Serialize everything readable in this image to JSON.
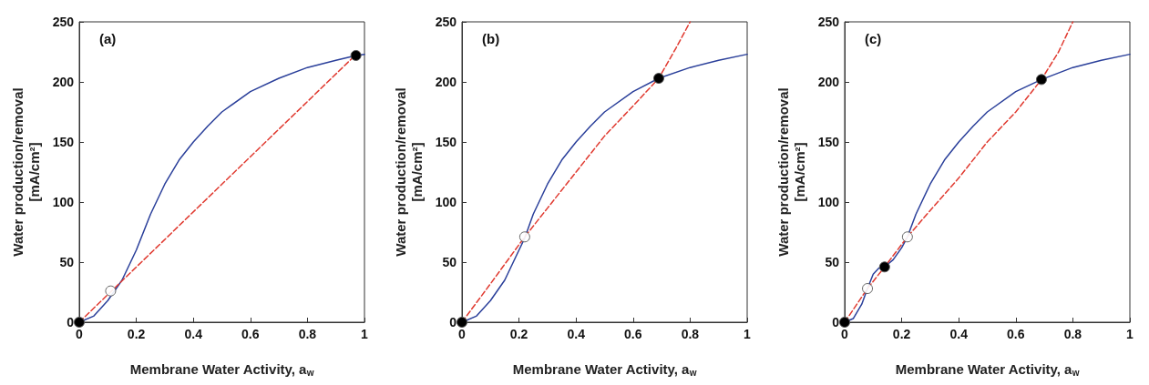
{
  "chart_data": [
    {
      "type": "line",
      "title": "(a)",
      "xlabel": "Membrane Water Activity, a$_{w}$",
      "ylabel": "Water production/removal\n[mA/cm²]",
      "xlim": [
        0,
        1
      ],
      "ylim": [
        0,
        250
      ],
      "xticks": [
        0,
        0.2,
        0.4,
        0.6,
        0.8,
        1
      ],
      "yticks": [
        0,
        50,
        100,
        150,
        200,
        250
      ],
      "grid": false,
      "marker": "none",
      "series": [
        {
          "color": "#2a3f9a",
          "line_style": "solid",
          "x": [
            0,
            0.05,
            0.1,
            0.15,
            0.2,
            0.25,
            0.3,
            0.35,
            0.4,
            0.45,
            0.5,
            0.6,
            0.7,
            0.8,
            0.9,
            0.97,
            1
          ],
          "values": [
            0,
            5,
            18,
            35,
            60,
            90,
            115,
            135,
            150,
            163,
            175,
            192,
            203,
            212,
            218,
            222,
            223
          ]
        },
        {
          "color": "#e03a30",
          "line_style": "dashed",
          "x": [
            0,
            0.98
          ],
          "values": [
            0,
            225
          ]
        },
        {
          "type": "scatter",
          "marker": "circle",
          "color": "#000000",
          "x": [
            0,
            0.97
          ],
          "values": [
            0,
            222
          ]
        },
        {
          "type": "scatter",
          "marker": "circle",
          "color": "#ffffff",
          "x": [
            0.11
          ],
          "values": [
            26
          ]
        }
      ]
    },
    {
      "type": "line",
      "title": "(b)",
      "xlabel": "Membrane Water Activity, a$_{w}$",
      "ylabel": "Water production/removal\n[mA/cm²]",
      "xlim": [
        0,
        1
      ],
      "ylim": [
        0,
        250
      ],
      "xticks": [
        0,
        0.2,
        0.4,
        0.6,
        0.8,
        1
      ],
      "yticks": [
        0,
        50,
        100,
        150,
        200,
        250
      ],
      "grid": false,
      "marker": "none",
      "series": [
        {
          "color": "#2a3f9a",
          "line_style": "solid",
          "x": [
            0,
            0.05,
            0.1,
            0.15,
            0.2,
            0.22,
            0.25,
            0.3,
            0.35,
            0.4,
            0.45,
            0.5,
            0.6,
            0.69,
            0.8,
            0.9,
            1
          ],
          "values": [
            0,
            5,
            18,
            35,
            60,
            70,
            90,
            115,
            135,
            150,
            163,
            175,
            192,
            203,
            212,
            218,
            223
          ]
        },
        {
          "color": "#e03a30",
          "line_style": "dashed",
          "x": [
            0,
            0.1,
            0.22,
            0.3,
            0.4,
            0.5,
            0.6,
            0.69,
            0.75,
            0.8
          ],
          "values": [
            0,
            32,
            71,
            95,
            125,
            155,
            180,
            203,
            228,
            250
          ]
        },
        {
          "type": "scatter",
          "marker": "circle",
          "color": "#000000",
          "x": [
            0,
            0.69
          ],
          "values": [
            0,
            203
          ]
        },
        {
          "type": "scatter",
          "marker": "circle",
          "color": "#ffffff",
          "x": [
            0.22
          ],
          "values": [
            71
          ]
        }
      ]
    },
    {
      "type": "line",
      "title": "(c)",
      "xlabel": "Membrane Water Activity, a$_{w}$",
      "ylabel": "Water production/removal\n[mA/cm²]",
      "xlim": [
        0,
        1
      ],
      "ylim": [
        0,
        250
      ],
      "xticks": [
        0,
        0.2,
        0.4,
        0.6,
        0.8,
        1
      ],
      "yticks": [
        0,
        50,
        100,
        150,
        200,
        250
      ],
      "grid": false,
      "marker": "none",
      "series": [
        {
          "color": "#2a3f9a",
          "line_style": "solid",
          "x": [
            0,
            0.03,
            0.06,
            0.08,
            0.1,
            0.12,
            0.14,
            0.17,
            0.2,
            0.22,
            0.25,
            0.3,
            0.35,
            0.4,
            0.45,
            0.5,
            0.6,
            0.69,
            0.8,
            0.9,
            1
          ],
          "values": [
            0,
            3,
            15,
            28,
            40,
            45,
            46,
            52,
            62,
            71,
            90,
            115,
            135,
            150,
            163,
            175,
            192,
            202,
            212,
            218,
            223
          ]
        },
        {
          "color": "#e03a30",
          "line_style": "dashed",
          "x": [
            0,
            0.08,
            0.14,
            0.22,
            0.3,
            0.4,
            0.5,
            0.6,
            0.69,
            0.75,
            0.8
          ],
          "values": [
            0,
            28,
            46,
            71,
            93,
            120,
            150,
            175,
            202,
            225,
            250
          ]
        },
        {
          "type": "scatter",
          "marker": "circle",
          "color": "#000000",
          "x": [
            0,
            0.14,
            0.69
          ],
          "values": [
            0,
            46,
            202
          ]
        },
        {
          "type": "scatter",
          "marker": "circle",
          "color": "#ffffff",
          "x": [
            0.08,
            0.22
          ],
          "values": [
            28,
            71
          ]
        }
      ]
    }
  ]
}
